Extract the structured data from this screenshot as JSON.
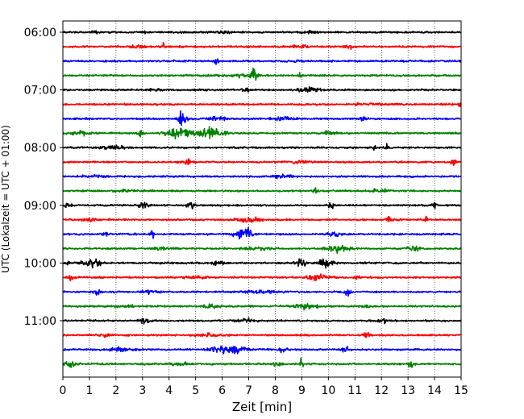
{
  "chart_data": {
    "type": "line",
    "subtype": "seismogram-helicorder",
    "title": "",
    "xlabel": "Zeit  [min]",
    "ylabel": "UTC (Lokalzeit = UTC + 01:00)",
    "xlim": [
      0,
      15
    ],
    "x_ticks": [
      "0",
      "1",
      "2",
      "3",
      "4",
      "5",
      "6",
      "7",
      "8",
      "9",
      "10",
      "11",
      "12",
      "13",
      "14",
      "15"
    ],
    "y_ticks": [
      "06:00",
      "07:00",
      "08:00",
      "09:00",
      "10:00",
      "11:00"
    ],
    "grid": "vertical-dotted",
    "trace_interval_minutes": 15,
    "trace_colors": [
      "#000000",
      "#ff0000",
      "#0000ff",
      "#008000"
    ],
    "traces": [
      {
        "start": "06:00",
        "color": "#000000",
        "events": [
          [
            1.2,
            0.1,
            0.35
          ],
          [
            3.1,
            0.1,
            0.3
          ],
          [
            6.0,
            0.2,
            0.3
          ],
          [
            9.2,
            0.2,
            0.3
          ]
        ]
      },
      {
        "start": "06:15",
        "color": "#ff0000",
        "events": [
          [
            2.9,
            0.2,
            0.45
          ],
          [
            3.8,
            0.05,
            0.9
          ],
          [
            9.0,
            0.2,
            0.4
          ],
          [
            10.8,
            0.1,
            0.5
          ]
        ]
      },
      {
        "start": "06:30",
        "color": "#0000ff",
        "events": [
          [
            5.8,
            0.05,
            0.9
          ],
          [
            9.0,
            0.15,
            0.3
          ]
        ]
      },
      {
        "start": "06:45",
        "color": "#008000",
        "events": [
          [
            7.2,
            0.1,
            1.6
          ],
          [
            8.9,
            0.05,
            0.9
          ],
          [
            6.6,
            0.3,
            0.4
          ]
        ]
      },
      {
        "start": "07:00",
        "color": "#000000",
        "events": [
          [
            6.9,
            0.08,
            1.0
          ],
          [
            9.3,
            0.3,
            0.5
          ],
          [
            3.4,
            0.2,
            0.3
          ]
        ]
      },
      {
        "start": "07:15",
        "color": "#ff0000",
        "events": [
          [
            15.0,
            0.05,
            0.9
          ],
          [
            11.5,
            0.3,
            0.3
          ]
        ]
      },
      {
        "start": "07:30",
        "color": "#0000ff",
        "events": [
          [
            4.5,
            0.1,
            1.8
          ],
          [
            5.8,
            0.2,
            0.6
          ],
          [
            11.3,
            0.1,
            0.8
          ],
          [
            8.3,
            0.3,
            0.4
          ]
        ]
      },
      {
        "start": "07:45",
        "color": "#008000",
        "events": [
          [
            4.4,
            0.35,
            1.3
          ],
          [
            5.6,
            0.3,
            1.4
          ],
          [
            2.9,
            0.1,
            0.7
          ],
          [
            0.6,
            0.3,
            0.4
          ],
          [
            10.0,
            0.2,
            0.4
          ]
        ]
      },
      {
        "start": "08:00",
        "color": "#000000",
        "events": [
          [
            11.7,
            0.05,
            0.8
          ],
          [
            12.2,
            0.08,
            0.9
          ],
          [
            2.0,
            0.4,
            0.3
          ]
        ]
      },
      {
        "start": "08:15",
        "color": "#ff0000",
        "events": [
          [
            4.7,
            0.15,
            0.7
          ],
          [
            14.7,
            0.06,
            0.9
          ],
          [
            9.0,
            0.3,
            0.3
          ]
        ]
      },
      {
        "start": "08:30",
        "color": "#0000ff",
        "events": [
          [
            8.2,
            0.3,
            0.3
          ],
          [
            1.2,
            0.3,
            0.3
          ]
        ]
      },
      {
        "start": "08:45",
        "color": "#008000",
        "events": [
          [
            9.5,
            0.06,
            1.0
          ],
          [
            2.3,
            0.3,
            0.3
          ],
          [
            12.0,
            0.3,
            0.3
          ]
        ]
      },
      {
        "start": "09:00",
        "color": "#000000",
        "events": [
          [
            10.1,
            0.1,
            0.8
          ],
          [
            4.8,
            0.1,
            0.9
          ],
          [
            14.0,
            0.05,
            0.9
          ],
          [
            0.2,
            0.1,
            0.7
          ],
          [
            3.0,
            0.15,
            0.6
          ]
        ]
      },
      {
        "start": "09:15",
        "color": "#ff0000",
        "events": [
          [
            7.0,
            0.3,
            0.6
          ],
          [
            12.3,
            0.1,
            0.6
          ],
          [
            13.7,
            0.05,
            1.0
          ],
          [
            1.0,
            0.2,
            0.4
          ]
        ]
      },
      {
        "start": "09:30",
        "color": "#0000ff",
        "events": [
          [
            3.4,
            0.05,
            1.0
          ],
          [
            6.7,
            0.25,
            0.8
          ],
          [
            7.0,
            0.1,
            1.0
          ],
          [
            1.6,
            0.1,
            0.5
          ],
          [
            10.2,
            0.2,
            0.4
          ]
        ]
      },
      {
        "start": "09:45",
        "color": "#008000",
        "events": [
          [
            10.4,
            0.3,
            0.7
          ],
          [
            13.2,
            0.2,
            0.6
          ],
          [
            7.3,
            0.3,
            0.4
          ],
          [
            3.8,
            0.3,
            0.3
          ]
        ]
      },
      {
        "start": "10:00",
        "color": "#000000",
        "events": [
          [
            1.1,
            0.25,
            1.0
          ],
          [
            9.0,
            0.15,
            0.9
          ],
          [
            9.9,
            0.2,
            1.1
          ],
          [
            0.2,
            0.05,
            0.8
          ],
          [
            5.9,
            0.2,
            0.4
          ]
        ]
      },
      {
        "start": "10:15",
        "color": "#ff0000",
        "events": [
          [
            0.3,
            0.05,
            1.1
          ],
          [
            9.6,
            0.3,
            0.7
          ],
          [
            11.1,
            0.05,
            0.9
          ],
          [
            5.0,
            0.3,
            0.3
          ]
        ]
      },
      {
        "start": "10:30",
        "color": "#0000ff",
        "events": [
          [
            1.3,
            0.1,
            0.9
          ],
          [
            10.7,
            0.1,
            0.8
          ],
          [
            7.5,
            0.4,
            0.4
          ],
          [
            3.3,
            0.2,
            0.4
          ]
        ]
      },
      {
        "start": "10:45",
        "color": "#008000",
        "events": [
          [
            5.6,
            0.2,
            0.6
          ],
          [
            9.1,
            0.3,
            0.6
          ],
          [
            11.4,
            0.1,
            0.6
          ],
          [
            2.3,
            0.3,
            0.3
          ]
        ]
      },
      {
        "start": "11:00",
        "color": "#000000",
        "events": [
          [
            3.1,
            0.15,
            0.8
          ],
          [
            11.9,
            0.05,
            1.0
          ],
          [
            12.1,
            0.05,
            0.9
          ],
          [
            6.8,
            0.3,
            0.4
          ]
        ]
      },
      {
        "start": "11:15",
        "color": "#ff0000",
        "events": [
          [
            11.4,
            0.1,
            0.7
          ],
          [
            5.5,
            0.3,
            0.4
          ],
          [
            1.6,
            0.2,
            0.3
          ]
        ]
      },
      {
        "start": "11:30",
        "color": "#0000ff",
        "events": [
          [
            6.4,
            0.3,
            1.1
          ],
          [
            5.8,
            0.2,
            0.8
          ],
          [
            10.6,
            0.1,
            0.9
          ],
          [
            8.3,
            0.1,
            0.7
          ],
          [
            2.2,
            0.3,
            0.4
          ]
        ]
      },
      {
        "start": "11:45",
        "color": "#008000",
        "events": [
          [
            0.3,
            0.15,
            0.8
          ],
          [
            8.1,
            0.1,
            1.0
          ],
          [
            9.0,
            0.05,
            1.1
          ],
          [
            13.1,
            0.1,
            0.6
          ],
          [
            4.5,
            0.3,
            0.3
          ]
        ]
      }
    ]
  }
}
